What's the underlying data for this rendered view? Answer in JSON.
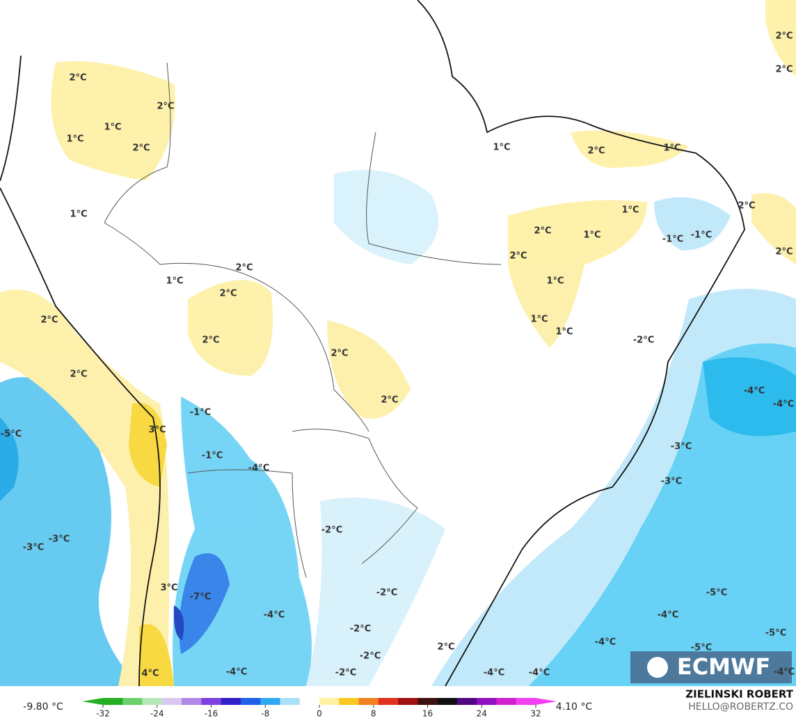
{
  "map": {
    "contour_labels": [
      "2°C",
      "2°C",
      "1°C",
      "1°C",
      "2°C",
      "1°C",
      "1°C",
      "2°C",
      "2°C",
      "2°C",
      "2°C",
      "2°C",
      "2°C",
      "2°C",
      "3°C",
      "-1°C",
      "-1°C",
      "-4°C",
      "-2°C",
      "-5°C",
      "-3°C",
      "-3°C",
      "3°C",
      "-7°C",
      "-4°C",
      "-2°C",
      "-2°C",
      "-2°C",
      "-2°C",
      "-4°C",
      "4°C",
      "2°C",
      "-4°C",
      "-4°C",
      "-4°C",
      "-4°C",
      "-5°C",
      "-5°C",
      "-5°C",
      "-4°C",
      "-4°C",
      "-4°C",
      "-3°C",
      "-3°C",
      "-2°C",
      "-1°C",
      "-1°C",
      "2°C",
      "2°C",
      "1°C",
      "1°C",
      "2°C",
      "2°C",
      "1°C",
      "1°C",
      "1°C",
      "1°C",
      "2°C",
      "1°C",
      "2°C",
      "2°C"
    ],
    "logo": "ECMWF"
  },
  "colorbar": {
    "min_label": "-9.80 °C",
    "max_label": "4.10 °C",
    "ticks": [
      -32,
      -24,
      -16,
      -8,
      0,
      8,
      16,
      24,
      32
    ]
  },
  "credits": {
    "author": "ZIELINSKI ROBERT",
    "contact": "HELLO@ROBERTZ.CO"
  }
}
